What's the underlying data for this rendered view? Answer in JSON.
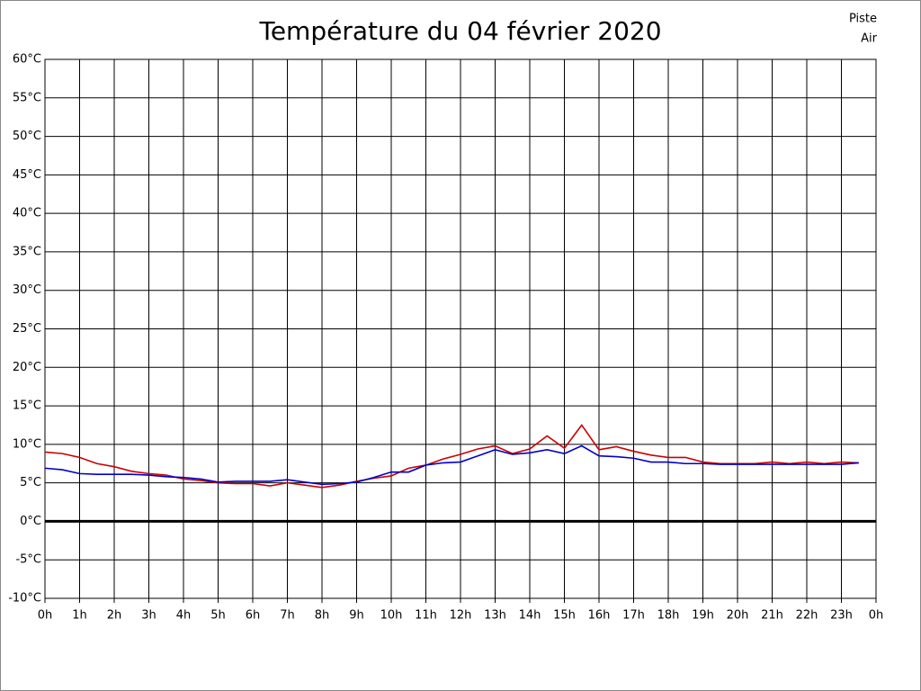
{
  "chart_data": {
    "type": "line",
    "title": "Température du 04 février 2020",
    "x": [
      0,
      0.5,
      1,
      1.5,
      2,
      2.5,
      3,
      3.5,
      4,
      4.5,
      5,
      5.5,
      6,
      6.5,
      7,
      7.5,
      8,
      8.5,
      9,
      9.5,
      10,
      10.5,
      11,
      11.5,
      12,
      12.5,
      13,
      13.5,
      14,
      14.5,
      15,
      15.5,
      16,
      16.5,
      17,
      17.5,
      18,
      18.5,
      19,
      19.5,
      20,
      20.5,
      21,
      21.5,
      22,
      22.5,
      23,
      23.5
    ],
    "series": [
      {
        "name": "Piste",
        "color": "#cc0000",
        "values": [
          9.0,
          8.8,
          8.3,
          7.5,
          7.1,
          6.5,
          6.2,
          6.0,
          5.5,
          5.3,
          5.0,
          4.9,
          4.9,
          4.6,
          5.0,
          4.7,
          4.4,
          4.7,
          5.2,
          5.6,
          5.9,
          6.9,
          7.3,
          8.1,
          8.7,
          9.4,
          9.8,
          8.8,
          9.4,
          11.1,
          9.5,
          12.5,
          9.3,
          9.7,
          9.1,
          8.6,
          8.3,
          8.3,
          7.7,
          7.5,
          7.5,
          7.5,
          7.7,
          7.5,
          7.7,
          7.5,
          7.7,
          7.6
        ]
      },
      {
        "name": "Air",
        "color": "#0000cc",
        "values": [
          6.9,
          6.7,
          6.2,
          6.1,
          6.1,
          6.1,
          6.0,
          5.8,
          5.7,
          5.5,
          5.1,
          5.2,
          5.2,
          5.2,
          5.4,
          5.1,
          4.8,
          4.9,
          5.1,
          5.7,
          6.4,
          6.4,
          7.3,
          7.6,
          7.7,
          8.5,
          9.3,
          8.7,
          8.9,
          9.3,
          8.8,
          9.8,
          8.5,
          8.4,
          8.2,
          7.7,
          7.7,
          7.5,
          7.5,
          7.4,
          7.4,
          7.4,
          7.4,
          7.4,
          7.4,
          7.4,
          7.4,
          7.6
        ]
      }
    ],
    "xlim": [
      0,
      24
    ],
    "xticks": [
      {
        "value": 0,
        "label": "0h"
      },
      {
        "value": 1,
        "label": "1h"
      },
      {
        "value": 2,
        "label": "2h"
      },
      {
        "value": 3,
        "label": "3h"
      },
      {
        "value": 4,
        "label": "4h"
      },
      {
        "value": 5,
        "label": "5h"
      },
      {
        "value": 6,
        "label": "6h"
      },
      {
        "value": 7,
        "label": "7h"
      },
      {
        "value": 8,
        "label": "8h"
      },
      {
        "value": 9,
        "label": "9h"
      },
      {
        "value": 10,
        "label": "10h"
      },
      {
        "value": 11,
        "label": "11h"
      },
      {
        "value": 12,
        "label": "12h"
      },
      {
        "value": 13,
        "label": "13h"
      },
      {
        "value": 14,
        "label": "14h"
      },
      {
        "value": 15,
        "label": "15h"
      },
      {
        "value": 16,
        "label": "16h"
      },
      {
        "value": 17,
        "label": "17h"
      },
      {
        "value": 18,
        "label": "18h"
      },
      {
        "value": 19,
        "label": "19h"
      },
      {
        "value": 20,
        "label": "20h"
      },
      {
        "value": 21,
        "label": "21h"
      },
      {
        "value": 22,
        "label": "22h"
      },
      {
        "value": 23,
        "label": "23h"
      },
      {
        "value": 24,
        "label": "0h"
      }
    ],
    "ylim": [
      -10,
      60
    ],
    "yticks": [
      {
        "value": -10,
        "label": "-10°C"
      },
      {
        "value": -5,
        "label": "-5°C"
      },
      {
        "value": 0,
        "label": "0°C"
      },
      {
        "value": 5,
        "label": "5°C"
      },
      {
        "value": 10,
        "label": "10°C"
      },
      {
        "value": 15,
        "label": "15°C"
      },
      {
        "value": 20,
        "label": "20°C"
      },
      {
        "value": 25,
        "label": "25°C"
      },
      {
        "value": 30,
        "label": "30°C"
      },
      {
        "value": 35,
        "label": "35°C"
      },
      {
        "value": 40,
        "label": "40°C"
      },
      {
        "value": 45,
        "label": "45°C"
      },
      {
        "value": 50,
        "label": "50°C"
      },
      {
        "value": 55,
        "label": "55°C"
      },
      {
        "value": 60,
        "label": "60°C"
      }
    ],
    "grid": true,
    "zero_line": true,
    "legend": "top-right"
  }
}
